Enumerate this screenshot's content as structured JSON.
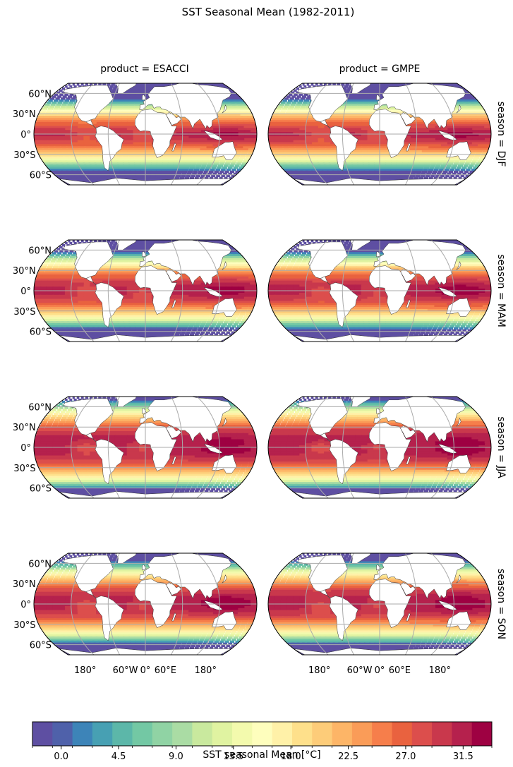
{
  "title": "SST Seasonal Mean (1982-2011)",
  "columns": [
    {
      "label": "product = ESACCI",
      "product": "ESACCI"
    },
    {
      "label": "product = GMPE",
      "product": "GMPE"
    }
  ],
  "rows": [
    {
      "label": "season = DJF",
      "season": "DJF",
      "nh_shift": -8,
      "sh_shift": 6
    },
    {
      "label": "season = MAM",
      "season": "MAM",
      "nh_shift": -2,
      "sh_shift": 3
    },
    {
      "label": "season = JJA",
      "season": "JJA",
      "nh_shift": 9,
      "sh_shift": -3
    },
    {
      "label": "season = SON",
      "season": "SON",
      "nh_shift": 3,
      "sh_shift": 0
    }
  ],
  "latitude_labels": [
    "60°N",
    "30°N",
    "0°",
    "30°S",
    "60°S"
  ],
  "longitude_labels": [
    "180°",
    "60°W",
    "0°",
    "60°E",
    "180°"
  ],
  "colorbar": {
    "label": "SST seasonal Mean [°C]",
    "min": -2.25,
    "max": 33.75,
    "step": 1.5,
    "tick_values": [
      0.0,
      4.5,
      9.0,
      13.5,
      18.0,
      22.5,
      27.0,
      31.5
    ],
    "tick_labels": [
      "0.0",
      "4.5",
      "9.0",
      "13.5",
      "18.0",
      "22.5",
      "27.0",
      "31.5"
    ],
    "colormap": "Spectral_r",
    "colors": [
      "#5e4fa2",
      "#4f61aa",
      "#3d84b8",
      "#47a0b3",
      "#5cb7a9",
      "#73c8a4",
      "#90d3a4",
      "#aadca4",
      "#c9e99e",
      "#e0f3a1",
      "#f3faad",
      "#fefebd",
      "#fff1a8",
      "#fee08b",
      "#fdcc79",
      "#fdb567",
      "#fa9c58",
      "#f67e4b",
      "#e9623f",
      "#dc4e4c",
      "#c9384c",
      "#b5214d",
      "#9e0142"
    ]
  }
}
